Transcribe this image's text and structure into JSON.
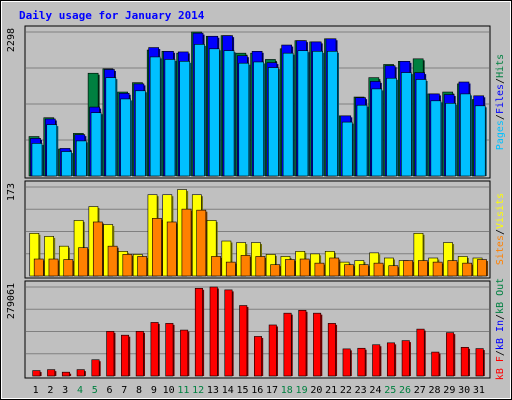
{
  "chart_data": [
    {
      "type": "bar",
      "title": "Daily usage for January 2014",
      "categories": [
        "1",
        "2",
        "3",
        "4",
        "5",
        "6",
        "7",
        "8",
        "9",
        "10",
        "11",
        "12",
        "13",
        "14",
        "15",
        "16",
        "17",
        "18",
        "19",
        "20",
        "21",
        "22",
        "23",
        "24",
        "25",
        "26",
        "27",
        "28",
        "29",
        "30",
        "31"
      ],
      "weekend_days": [
        "4",
        "5",
        "11",
        "12",
        "18",
        "19",
        "25",
        "26"
      ],
      "ylim": [
        0,
        2298
      ],
      "y_tick_label": "2298",
      "series": [
        {
          "name": "Hits",
          "color": "#008040",
          "values": [
            630,
            930,
            430,
            680,
            1640,
            1710,
            1340,
            1490,
            2010,
            1990,
            1960,
            2298,
            2230,
            2240,
            1960,
            1960,
            1860,
            2030,
            2160,
            2140,
            2190,
            960,
            1260,
            1570,
            1780,
            1830,
            1870,
            1310,
            1340,
            1470,
            1220
          ]
        },
        {
          "name": "Files",
          "color": "#0000ff",
          "values": [
            600,
            910,
            440,
            660,
            1100,
            1700,
            1320,
            1470,
            2050,
            1990,
            1980,
            2280,
            2230,
            2240,
            1920,
            1990,
            1810,
            2090,
            2160,
            2140,
            2190,
            960,
            1250,
            1510,
            1760,
            1830,
            1650,
            1310,
            1300,
            1500,
            1280
          ]
        },
        {
          "name": "Pages",
          "color": "#00c0ff",
          "values": [
            520,
            820,
            390,
            560,
            1010,
            1570,
            1230,
            1360,
            1900,
            1860,
            1830,
            2100,
            2030,
            2000,
            1800,
            1820,
            1730,
            1960,
            2000,
            1990,
            1990,
            860,
            1130,
            1390,
            1560,
            1650,
            1540,
            1200,
            1160,
            1310,
            1120
          ]
        }
      ]
    },
    {
      "type": "bar",
      "ylim": [
        0,
        173
      ],
      "y_tick_label": "173",
      "series": [
        {
          "name": "Visits",
          "color": "#ffff00",
          "values": [
            83,
            77,
            58,
            108,
            135,
            100,
            48,
            42,
            158,
            158,
            168,
            158,
            108,
            68,
            65,
            65,
            42,
            38,
            48,
            43,
            48,
            27,
            30,
            45,
            35,
            30,
            83,
            35,
            65,
            38,
            35
          ]
        },
        {
          "name": "Sites",
          "color": "#ff8000",
          "values": [
            33,
            33,
            32,
            55,
            105,
            58,
            42,
            38,
            112,
            105,
            130,
            128,
            38,
            27,
            40,
            38,
            22,
            32,
            33,
            25,
            35,
            22,
            22,
            25,
            20,
            30,
            30,
            27,
            30,
            25,
            32
          ]
        }
      ]
    },
    {
      "type": "bar",
      "ylim": [
        0,
        279061
      ],
      "y_tick_label": "279061",
      "series": [
        {
          "name": "KBytes In",
          "color": "#0000ff",
          "values": [
            0,
            0,
            0,
            0,
            0,
            0,
            0,
            0,
            0,
            0,
            0,
            0,
            0,
            0,
            0,
            0,
            0,
            0,
            0,
            0,
            0,
            0,
            0,
            0,
            0,
            0,
            0,
            0,
            0,
            0,
            0
          ]
        },
        {
          "name": "KBytes Out",
          "color": "#008040",
          "values": [
            0,
            0,
            0,
            0,
            0,
            0,
            0,
            0,
            0,
            0,
            0,
            0,
            0,
            0,
            0,
            0,
            0,
            0,
            0,
            0,
            0,
            0,
            0,
            0,
            0,
            0,
            0,
            0,
            0,
            0,
            0
          ]
        },
        {
          "name": "KBytes F",
          "color": "#ff0000",
          "values": [
            17000,
            20000,
            12000,
            20000,
            51000,
            140000,
            128000,
            140000,
            168000,
            165000,
            144000,
            275000,
            279061,
            270000,
            221000,
            124000,
            160000,
            197000,
            206000,
            197000,
            165000,
            85000,
            87000,
            98000,
            104000,
            111000,
            147000,
            75000,
            136000,
            90000,
            86000
          ]
        }
      ]
    }
  ],
  "legends": {
    "top": [
      {
        "text": "Pages",
        "color": "#00c0ff"
      },
      {
        "text": "/",
        "color": "#000000"
      },
      {
        "text": "Files",
        "color": "#0000ff"
      },
      {
        "text": "/",
        "color": "#000000"
      },
      {
        "text": "Hits",
        "color": "#008040"
      }
    ],
    "middle": [
      {
        "text": "Sites",
        "color": "#ff8000"
      },
      {
        "text": "/",
        "color": "#000000"
      },
      {
        "text": "Visits",
        "color": "#ffff00"
      }
    ],
    "bottom": [
      {
        "text": "kB F",
        "color": "#ff0000"
      },
      {
        "text": "/",
        "color": "#000000"
      },
      {
        "text": "kB In",
        "color": "#0000ff"
      },
      {
        "text": "/",
        "color": "#000000"
      },
      {
        "text": "kB Out",
        "color": "#008040"
      }
    ]
  },
  "colors": {
    "background": "#c0c0c0",
    "title": "#0000ff",
    "weekday_label": "#000000",
    "weekend_label": "#008040",
    "grid": "#808080"
  }
}
